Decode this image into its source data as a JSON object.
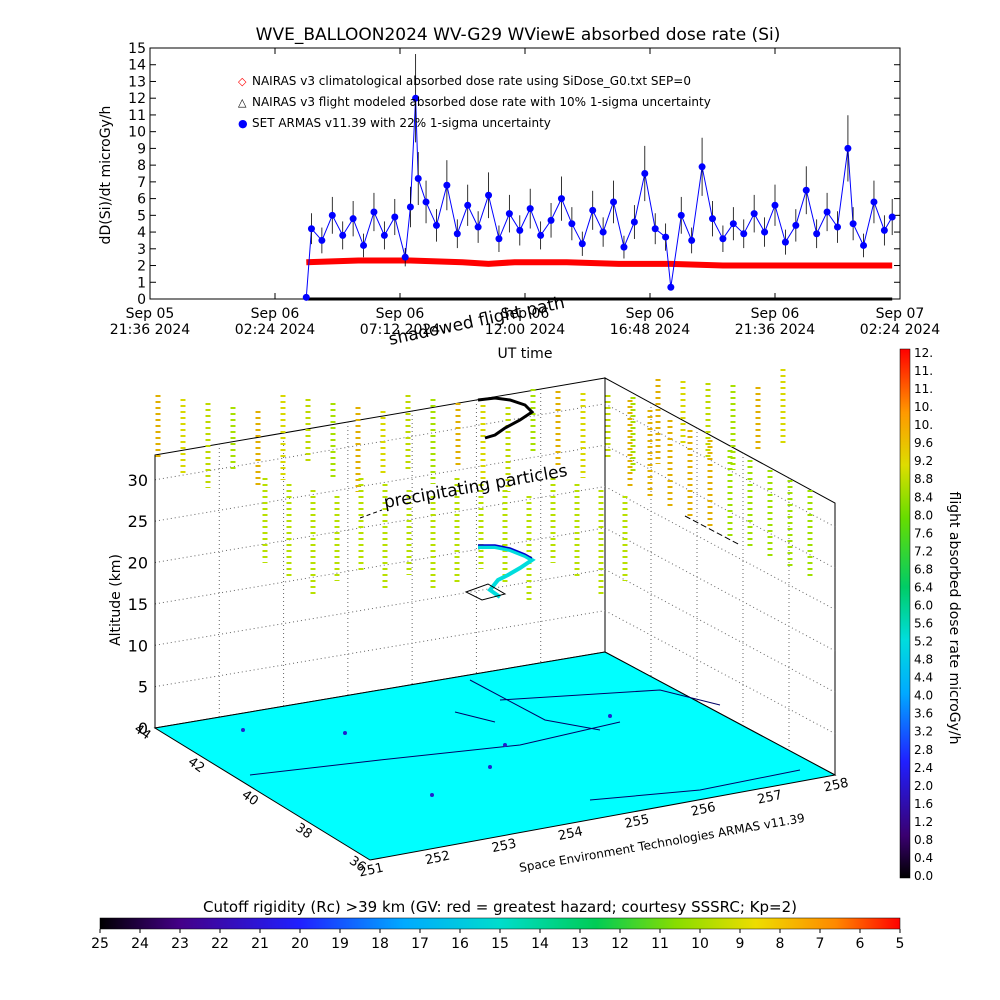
{
  "chart_data": [
    {
      "type": "scatter",
      "title": "WVE_BALLOON2024 WV-G29 WViewE absorbed dose rate (Si)",
      "ylabel": "dD(Si)/dt microGy/h",
      "xlabel": "UT time",
      "ylim": [
        0,
        15
      ],
      "yticks": [
        "0",
        "1",
        "2",
        "3",
        "4",
        "5",
        "6",
        "7",
        "8",
        "9",
        "10",
        "11",
        "12",
        "13",
        "14",
        "15"
      ],
      "xticks": [
        {
          "top": "Sep 05",
          "bottom": "21:36 2024"
        },
        {
          "top": "Sep 06",
          "bottom": "02:24 2024"
        },
        {
          "top": "Sep 06",
          "bottom": "07:12 2024"
        },
        {
          "top": "Sep 06",
          "bottom": "12:00 2024"
        },
        {
          "top": "Sep 06",
          "bottom": "16:48 2024"
        },
        {
          "top": "Sep 06",
          "bottom": "21:36 2024"
        },
        {
          "top": "Sep 07",
          "bottom": "02:24 2024"
        }
      ],
      "xlim_hours": [
        0,
        28.8
      ],
      "legend": [
        {
          "symbol": "◇",
          "label": "NAIRAS v3 climatological absorbed dose rate using SiDose_G0.txt SEP=0",
          "color": "#ff0000"
        },
        {
          "symbol": "△",
          "label": "NAIRAS v3 flight modeled absorbed dose rate with 10% 1-sigma uncertainty",
          "color": "#000000"
        },
        {
          "symbol": "●",
          "label": "SET ARMAS v11.39 with 22% 1-sigma uncertainty",
          "color": "#0000ff"
        }
      ],
      "series": [
        {
          "name": "NAIRAS v3 climatological absorbed dose rate using SiDose_G0.txt SEP=0",
          "color": "#ff0000",
          "points": [
            [
              6.0,
              2.2
            ],
            [
              8.0,
              2.3
            ],
            [
              10.0,
              2.3
            ],
            [
              12.0,
              2.2
            ],
            [
              13.0,
              2.1
            ],
            [
              14.0,
              2.2
            ],
            [
              16.0,
              2.2
            ],
            [
              18.0,
              2.1
            ],
            [
              20.0,
              2.1
            ],
            [
              22.0,
              2.0
            ],
            [
              24.0,
              2.0
            ],
            [
              26.0,
              2.0
            ],
            [
              28.5,
              2.0
            ]
          ]
        },
        {
          "name": "NAIRAS v3 flight modeled absorbed dose rate with 10% 1-sigma uncertainty",
          "color": "#000000",
          "points": [
            [
              6.0,
              0.0
            ],
            [
              28.5,
              0.0
            ]
          ]
        },
        {
          "name": "SET ARMAS v11.39 with 22% 1-sigma uncertainty",
          "color": "#0000ff",
          "points": [
            [
              6.0,
              0.1
            ],
            [
              6.2,
              4.2
            ],
            [
              6.6,
              3.5
            ],
            [
              7.0,
              5.0
            ],
            [
              7.4,
              3.8
            ],
            [
              7.8,
              4.8
            ],
            [
              8.2,
              3.2
            ],
            [
              8.6,
              5.2
            ],
            [
              9.0,
              3.8
            ],
            [
              9.4,
              4.9
            ],
            [
              9.8,
              2.5
            ],
            [
              10.0,
              5.5
            ],
            [
              10.2,
              12.0
            ],
            [
              10.3,
              7.2
            ],
            [
              10.6,
              5.8
            ],
            [
              11.0,
              4.4
            ],
            [
              11.4,
              6.8
            ],
            [
              11.8,
              3.9
            ],
            [
              12.2,
              5.6
            ],
            [
              12.6,
              4.3
            ],
            [
              13.0,
              6.2
            ],
            [
              13.4,
              3.6
            ],
            [
              13.8,
              5.1
            ],
            [
              14.2,
              4.1
            ],
            [
              14.6,
              5.4
            ],
            [
              15.0,
              3.8
            ],
            [
              15.4,
              4.7
            ],
            [
              15.8,
              6.0
            ],
            [
              16.2,
              4.5
            ],
            [
              16.6,
              3.3
            ],
            [
              17.0,
              5.3
            ],
            [
              17.4,
              4.0
            ],
            [
              17.8,
              5.8
            ],
            [
              18.2,
              3.1
            ],
            [
              18.6,
              4.6
            ],
            [
              19.0,
              7.5
            ],
            [
              19.4,
              4.2
            ],
            [
              19.8,
              3.7
            ],
            [
              20.0,
              0.7
            ],
            [
              20.4,
              5.0
            ],
            [
              20.8,
              3.5
            ],
            [
              21.2,
              7.9
            ],
            [
              21.6,
              4.8
            ],
            [
              22.0,
              3.6
            ],
            [
              22.4,
              4.5
            ],
            [
              22.8,
              3.9
            ],
            [
              23.2,
              5.1
            ],
            [
              23.6,
              4.0
            ],
            [
              24.0,
              5.6
            ],
            [
              24.4,
              3.4
            ],
            [
              24.8,
              4.4
            ],
            [
              25.2,
              6.5
            ],
            [
              25.6,
              3.9
            ],
            [
              26.0,
              5.2
            ],
            [
              26.4,
              4.3
            ],
            [
              26.8,
              9.0
            ],
            [
              27.0,
              4.5
            ],
            [
              27.4,
              3.2
            ],
            [
              27.8,
              5.8
            ],
            [
              28.2,
              4.1
            ],
            [
              28.5,
              4.9
            ]
          ]
        }
      ]
    },
    {
      "type": "scatter",
      "zlabel": "Altitude (km)",
      "zticks": [
        "0",
        "5",
        "10",
        "15",
        "20",
        "25",
        "30"
      ],
      "lat_ticks": [
        "44",
        "42",
        "40",
        "38",
        "36"
      ],
      "lon_ticks": [
        "251",
        "252",
        "253",
        "254",
        "255",
        "256",
        "257",
        "258"
      ],
      "annotations": {
        "precipitating": "precipitating particles",
        "shadowed": "shadowed flight path",
        "credit": "Space Environment Technologies ARMAS v11.39"
      },
      "surface_color": "#00ffff"
    },
    {
      "type": "heatmap",
      "colorbar_label": "flight absorbed dose rate microGy/h",
      "ticks": [
        "0.0",
        "0.4",
        "0.8",
        "1.2",
        "1.6",
        "2.0",
        "2.4",
        "2.8",
        "3.2",
        "3.6",
        "4.0",
        "4.4",
        "4.8",
        "5.2",
        "5.6",
        "6.0",
        "6.4",
        "6.8",
        "7.2",
        "7.6",
        "8.0",
        "8.4",
        "8.8",
        "9.2",
        "9.6",
        "10.",
        "10.",
        "11.",
        "11.",
        "12."
      ],
      "range": [
        0,
        12
      ]
    },
    {
      "type": "heatmap",
      "colorbar_label": "Cutoff rigidity (Rc) >39 km (GV: red = greatest hazard; courtesy SSSRC; Kp=2)",
      "ticks": [
        "25",
        "24",
        "23",
        "22",
        "21",
        "20",
        "19",
        "18",
        "17",
        "16",
        "15",
        "14",
        "13",
        "12",
        "11",
        "10",
        "9",
        "8",
        "7",
        "6",
        "5"
      ],
      "range": [
        25,
        5
      ]
    }
  ]
}
